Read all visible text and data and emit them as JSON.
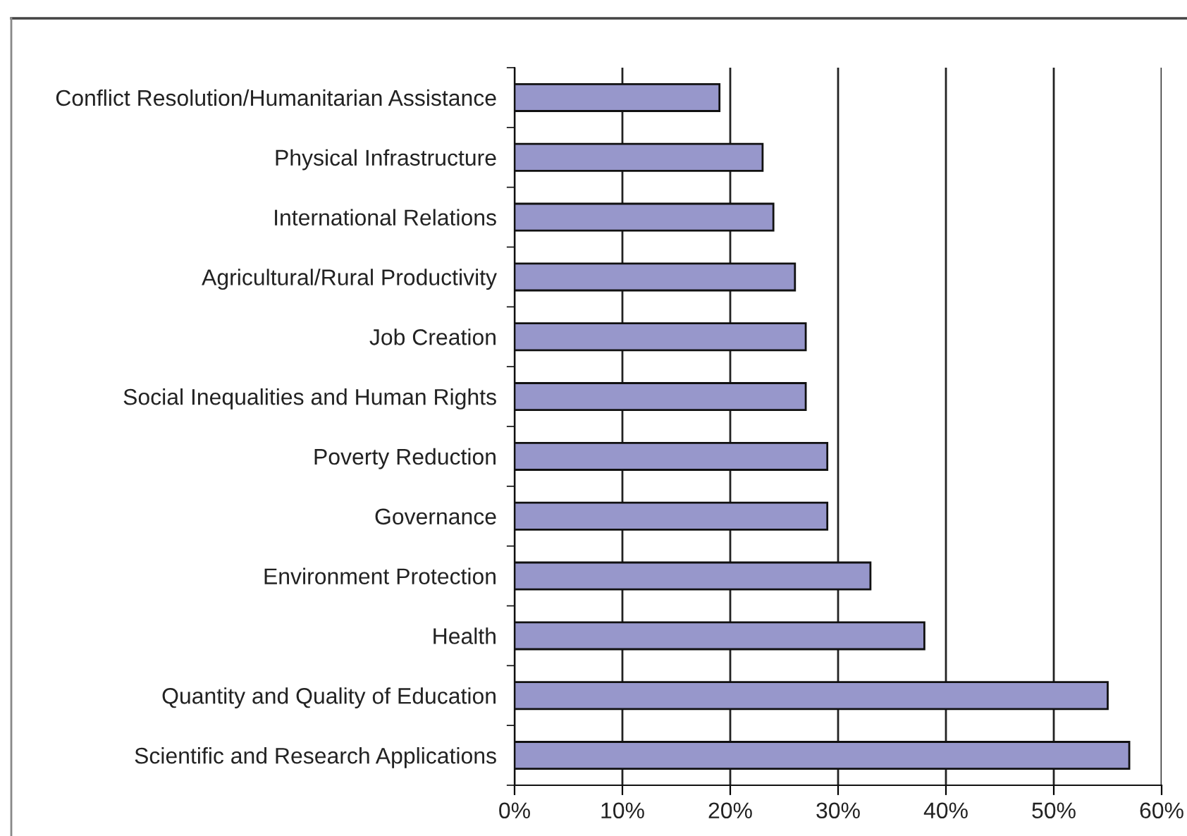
{
  "chart_data": {
    "type": "bar",
    "orientation": "horizontal",
    "categories": [
      "Conflict Resolution/Humanitarian Assistance",
      "Physical Infrastructure",
      "International Relations",
      "Agricultural/Rural Productivity",
      "Job Creation",
      "Social Inequalities and Human Rights",
      "Poverty Reduction",
      "Governance",
      "Environment Protection",
      "Health",
      "Quantity and Quality of Education",
      "Scientific and Research Applications"
    ],
    "values": [
      19,
      23,
      24,
      26,
      27,
      27,
      29,
      29,
      33,
      38,
      55,
      57
    ],
    "color": "#9797cb",
    "xlim": [
      0,
      60
    ],
    "xticks": [
      {
        "value": 0,
        "label": "0%"
      },
      {
        "value": 10,
        "label": "10%"
      },
      {
        "value": 20,
        "label": "20%"
      },
      {
        "value": 30,
        "label": "30%"
      },
      {
        "value": 40,
        "label": "40%"
      },
      {
        "value": 50,
        "label": "50%"
      },
      {
        "value": 60,
        "label": "60%"
      }
    ],
    "grid": "x",
    "legend": false
  }
}
